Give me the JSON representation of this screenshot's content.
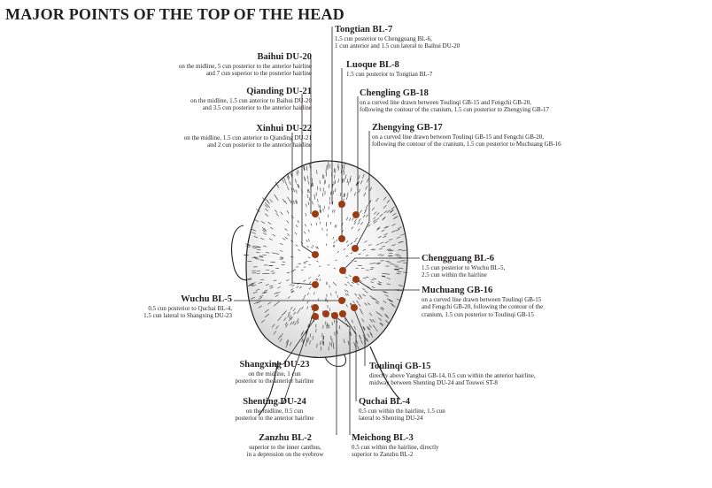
{
  "title": "MAJOR POINTS OF THE TOP OF THE HEAD",
  "colors": {
    "point": "#9b3b14",
    "ink": "#231f20",
    "hair": "#3a3a3a"
  },
  "points": [
    {
      "id": "tongtian",
      "name": "Tongtian BL-7",
      "desc": "1.5 cun posterior to Chengguang BL-6,\n1 cun anterior and 1.5 cun lateral to Baihui DU-20"
    },
    {
      "id": "baihui",
      "name": "Baihui DU-20",
      "desc": "on the midline, 5 cun posterior to the anterior hairline\nand 7 cun superior to the posterior hairline"
    },
    {
      "id": "luoque",
      "name": "Luoque BL-8",
      "desc": "1.5 cun posterior to Tongtian BL-7"
    },
    {
      "id": "qianding",
      "name": "Qianding DU-21",
      "desc": "on the midline, 1.5 cun anterior to Baihui DU-20\nand 3.5 cun posterior to the anterior hairline"
    },
    {
      "id": "chengling",
      "name": "Chengling GB-18",
      "desc": "on a curved line drawn between Toulinqi GB-15 and Fengchi GB-20,\nfollowing the contour of the cranium, 1.5 cun posterior to Zhengying GB-17"
    },
    {
      "id": "xinhui",
      "name": "Xinhui DU-22",
      "desc": "on the midline, 1.5 cun anterior to Qianding DU-21\nand 2 cun posterior to the anterior hairline"
    },
    {
      "id": "zhengying",
      "name": "Zhengying GB-17",
      "desc": "on a curved line drawn between Toulinqi GB-15 and Fengchi GB-20,\nfollowing the contour of the cranium, 1.5 cun posterior to Muchuang GB-16"
    },
    {
      "id": "chengguang",
      "name": "Chengguang BL-6",
      "desc": "1.5 cun posterior to Wuchu BL-5,\n2.5 cun within the hairline"
    },
    {
      "id": "muchuang",
      "name": "Muchuang GB-16",
      "desc": "on a curved line drawn between Toulinqi GB-15\nand Fengchi GB-20, following the contour of the\ncranium, 1.5 cun posterior to Toulinqi GB-15"
    },
    {
      "id": "wuchu",
      "name": "Wuchu BL-5",
      "desc": "0.5 cun posterior to Quchai BL-4,\n1.5 cun lateral to Shangxing DU-23"
    },
    {
      "id": "shangxing",
      "name": "Shangxing DU-23",
      "desc": "on the midline, 1 cun\nposterior to the anterior hairline"
    },
    {
      "id": "toulinqi",
      "name": "Toulinqi GB-15",
      "desc": "directly above Yangbai GB-14, 0.5 cun within the anterior hairline,\nmidway between Shenting DU-24 and Touwei ST-8"
    },
    {
      "id": "shenting",
      "name": "Shenting DU-24",
      "desc": "on the midline, 0.5 cun\nposterior to the anterior hairline"
    },
    {
      "id": "quchai",
      "name": "Quchai BL-4",
      "desc": "0.5 cun within the hairline, 1.5 cun\nlateral to Shenting DU-24"
    },
    {
      "id": "zanzhu",
      "name": "Zanzhu BL-2",
      "desc": "superior to the inner canthus,\nin a depression on the eyebrow"
    },
    {
      "id": "meichong",
      "name": "Meichong BL-3",
      "desc": "0.5 cun within the hairline, directly\nsuperior to Zanzhu BL-2"
    }
  ]
}
